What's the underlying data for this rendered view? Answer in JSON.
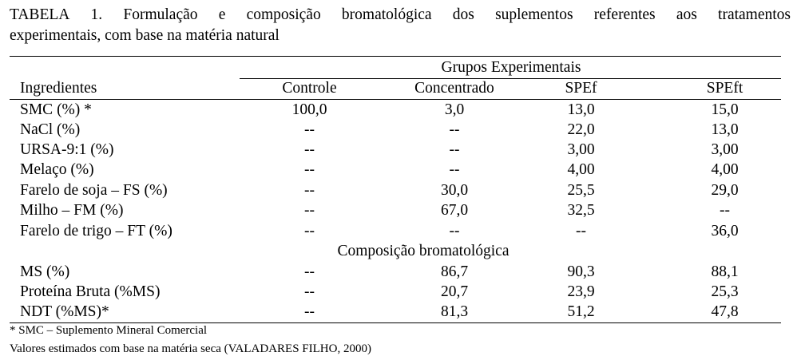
{
  "caption": {
    "line1_words": [
      "TABELA",
      "1.",
      "Formulação",
      "e",
      "composição",
      "bromatológica",
      "dos",
      "suplementos",
      "referentes",
      "aos",
      "tratamentos"
    ],
    "line2": "experimentais, com base na matéria natural"
  },
  "table": {
    "group_header": "Grupos Experimentais",
    "headers": [
      "Ingredientes",
      "Controle",
      "Concentrado",
      "SPEf",
      "SPEft"
    ],
    "section_label": "Composição bromatológica",
    "ingredient_rows": [
      {
        "label": "SMC (%) *",
        "values": [
          "100,0",
          "3,0",
          "13,0",
          "15,0"
        ]
      },
      {
        "label": "NaCl (%)",
        "values": [
          "--",
          "--",
          "22,0",
          "13,0"
        ]
      },
      {
        "label": "URSA-9:1 (%)",
        "values": [
          "--",
          "--",
          "3,00",
          "3,00"
        ]
      },
      {
        "label": "Melaço (%)",
        "values": [
          "--",
          "--",
          "4,00",
          "4,00"
        ]
      },
      {
        "label": "Farelo de soja – FS (%)",
        "values": [
          "--",
          "30,0",
          "25,5",
          "29,0"
        ]
      },
      {
        "label": "Milho – FM (%)",
        "values": [
          "--",
          "67,0",
          "32,5",
          "--"
        ]
      },
      {
        "label": "Farelo de trigo – FT (%)",
        "values": [
          "--",
          "--",
          "--",
          "36,0"
        ]
      }
    ],
    "composition_rows": [
      {
        "label": "MS (%)",
        "values": [
          "--",
          "86,7",
          "90,3",
          "88,1"
        ]
      },
      {
        "label": "Proteína Bruta (%MS)",
        "values": [
          "--",
          "20,7",
          "23,9",
          "25,3"
        ]
      },
      {
        "label": "NDT (%MS)*",
        "values": [
          "--",
          "81,3",
          "51,2",
          "47,8"
        ]
      }
    ]
  },
  "footnotes": [
    "* SMC – Suplemento Mineral Comercial",
    "Valores estimados com base na matéria seca (VALADARES FILHO, 2000)"
  ]
}
